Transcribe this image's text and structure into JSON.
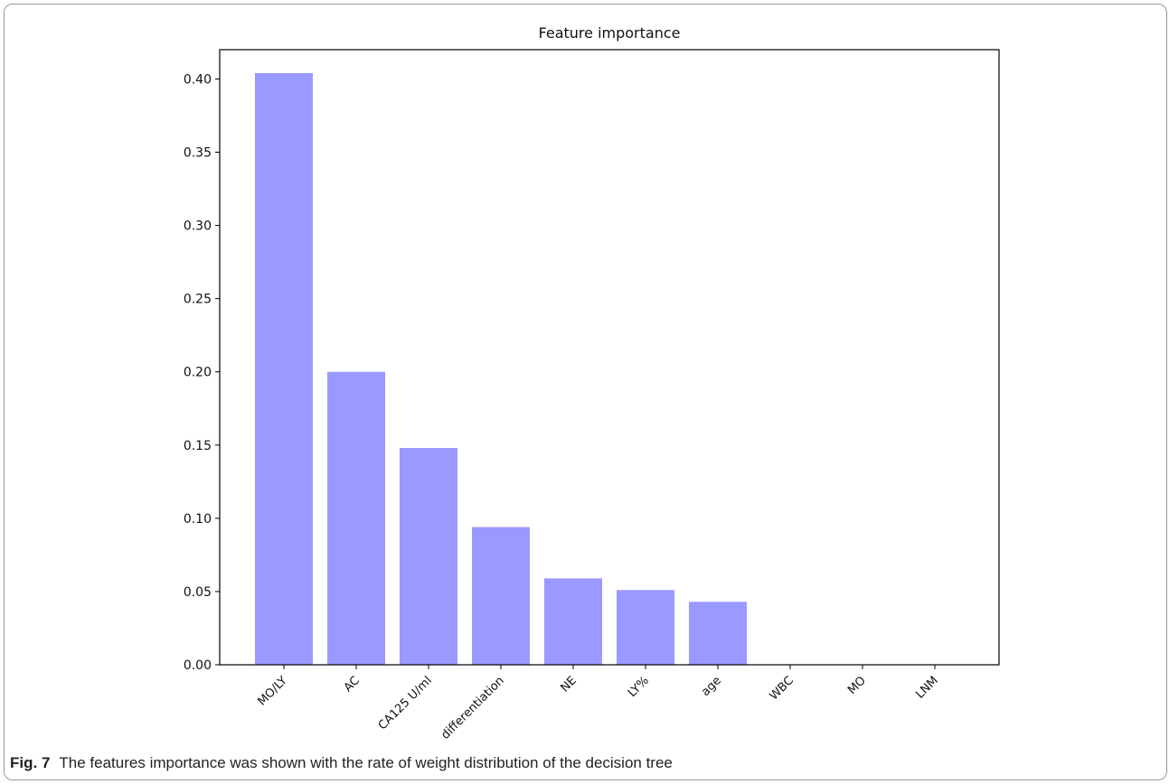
{
  "chart_data": {
    "type": "bar",
    "title": "Feature importance",
    "xlabel": "",
    "ylabel": "",
    "categories": [
      "MO/LY",
      "AC",
      "CA125 U/ml",
      "differentiation",
      "NE",
      "LY%",
      "age",
      "WBC",
      "MO",
      "LNM"
    ],
    "values": [
      0.404,
      0.2,
      0.148,
      0.094,
      0.059,
      0.051,
      0.043,
      0.0,
      0.0,
      0.0
    ],
    "ylim": [
      0,
      0.42
    ],
    "yticks": [
      "0.00",
      "0.05",
      "0.10",
      "0.15",
      "0.20",
      "0.25",
      "0.30",
      "0.35",
      "0.40"
    ],
    "bar_color": "#9999ff",
    "grid": false
  },
  "caption": {
    "label": "Fig. 7",
    "text": "The features importance was shown with the rate of weight distribution of the decision tree"
  }
}
